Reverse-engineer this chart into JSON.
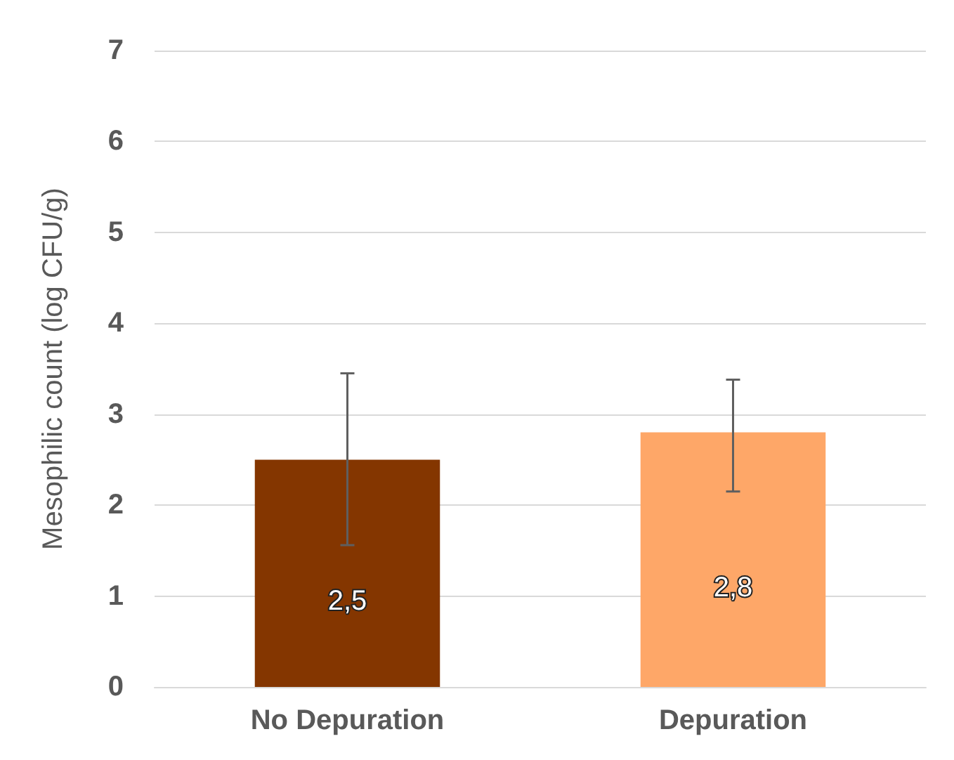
{
  "chart_data": {
    "type": "bar",
    "ylabel": "Mesophilic count (log CFU/g)",
    "categories": [
      "No Depuration",
      "Depuration"
    ],
    "values": [
      2.5,
      2.8
    ],
    "colors": [
      "#843600",
      "#fea768"
    ],
    "errors": [
      [
        1.56,
        3.45
      ],
      [
        2.15,
        3.38
      ]
    ],
    "value_labels": [
      "2,5",
      "2,8"
    ],
    "ylim": [
      0,
      7
    ],
    "yticks": [
      0,
      1,
      2,
      3,
      4,
      5,
      6,
      7
    ],
    "grid": "y"
  }
}
